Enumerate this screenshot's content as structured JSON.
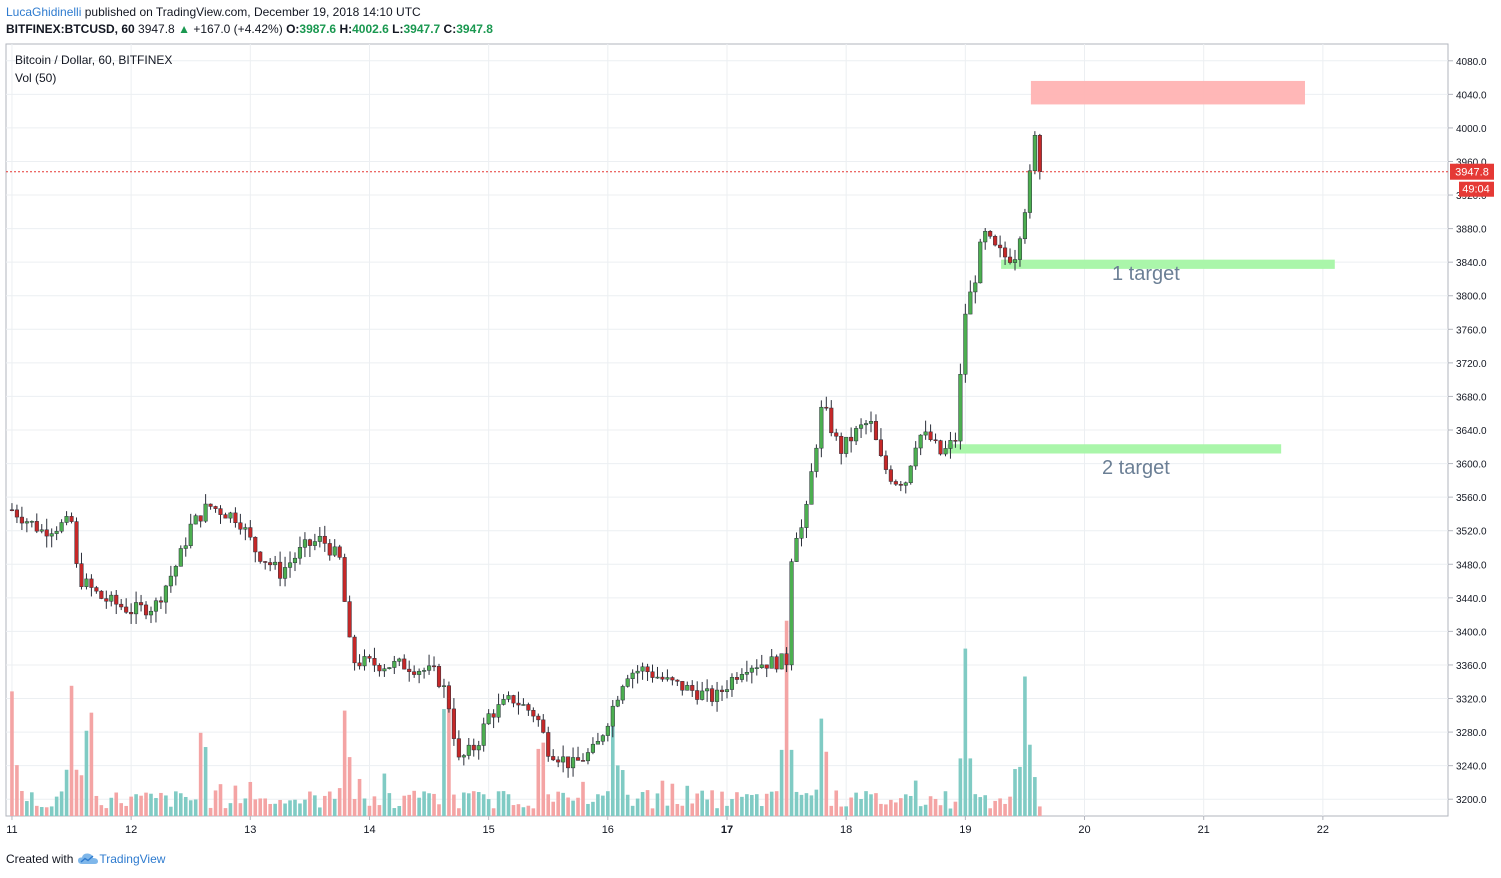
{
  "header": {
    "author": "LucaGhidinelli",
    "published": "published on TradingView.com, December 19, 2018 14:10 UTC",
    "symbol": "BITFINEX:BTCUSD, 60",
    "last": "3947.8",
    "change": "+167.0 (+4.42%)",
    "o_label": "O:",
    "o_value": "3987.6",
    "h_label": "H:",
    "h_value": "4002.6",
    "l_label": "L:",
    "l_value": "3947.7",
    "c_label": "C:",
    "c_value": "3947.8"
  },
  "legend": {
    "title": "Bitcoin / Dollar, 60, BITFINEX",
    "volume": "Vol (50)"
  },
  "price_tag": "3947.8",
  "countdown_tag": "49:04",
  "footer": {
    "created_with": "Created with",
    "brand": "TradingView"
  },
  "colors": {
    "up": "#26a69a",
    "down": "#ef5350",
    "candle_up_body": "#4caf50",
    "candle_down_body": "#c62828",
    "wick": "#2a2e39",
    "grid": "#eceff2",
    "target_zone": "#a5f5a5",
    "resistance_zone": "#ffb3b3",
    "last_price": "#e53935"
  },
  "chart_data": {
    "type": "candlestick",
    "title": "Bitcoin / Dollar, 60, BITFINEX",
    "ylim": [
      3180,
      4100
    ],
    "y_ticks": [
      3200,
      3240,
      3280,
      3320,
      3360,
      3400,
      3440,
      3480,
      3520,
      3560,
      3600,
      3640,
      3680,
      3720,
      3760,
      3800,
      3840,
      3880,
      3920,
      3960,
      4000,
      4040,
      4080
    ],
    "x_ticks": [
      "11",
      "12",
      "13",
      "14",
      "15",
      "16",
      "17",
      "18",
      "19",
      "20",
      "21",
      "22"
    ],
    "x_tick_days": [
      11,
      12,
      13,
      14,
      15,
      16,
      17,
      18,
      19,
      20,
      21,
      22
    ],
    "x_range_days": [
      10.95,
      23.05
    ],
    "last_price": 3947.8,
    "close_path": [
      [
        11.0,
        3545
      ],
      [
        11.25,
        3520
      ],
      [
        11.5,
        3530
      ],
      [
        11.55,
        3465
      ],
      [
        11.75,
        3440
      ],
      [
        12.0,
        3425
      ],
      [
        12.2,
        3430
      ],
      [
        12.4,
        3485
      ],
      [
        12.5,
        3525
      ],
      [
        12.65,
        3550
      ],
      [
        12.9,
        3535
      ],
      [
        13.05,
        3495
      ],
      [
        13.25,
        3470
      ],
      [
        13.45,
        3500
      ],
      [
        13.6,
        3510
      ],
      [
        13.75,
        3485
      ],
      [
        13.85,
        3365
      ],
      [
        14.1,
        3360
      ],
      [
        14.3,
        3360
      ],
      [
        14.55,
        3350
      ],
      [
        14.65,
        3325
      ],
      [
        14.75,
        3245
      ],
      [
        14.9,
        3265
      ],
      [
        15.0,
        3300
      ],
      [
        15.2,
        3320
      ],
      [
        15.4,
        3300
      ],
      [
        15.5,
        3260
      ],
      [
        15.7,
        3240
      ],
      [
        15.9,
        3260
      ],
      [
        16.0,
        3295
      ],
      [
        16.15,
        3350
      ],
      [
        16.3,
        3355
      ],
      [
        16.5,
        3340
      ],
      [
        16.7,
        3330
      ],
      [
        16.9,
        3320
      ],
      [
        17.05,
        3345
      ],
      [
        17.15,
        3360
      ],
      [
        17.5,
        3365
      ],
      [
        17.55,
        3515
      ],
      [
        17.65,
        3525
      ],
      [
        17.7,
        3580
      ],
      [
        17.8,
        3670
      ],
      [
        17.95,
        3615
      ],
      [
        18.1,
        3640
      ],
      [
        18.2,
        3650
      ],
      [
        18.3,
        3600
      ],
      [
        18.4,
        3580
      ],
      [
        18.5,
        3580
      ],
      [
        18.6,
        3635
      ],
      [
        18.7,
        3630
      ],
      [
        18.8,
        3610
      ],
      [
        18.92,
        3630
      ],
      [
        19.0,
        3780
      ],
      [
        19.08,
        3820
      ],
      [
        19.15,
        3875
      ],
      [
        19.25,
        3855
      ],
      [
        19.35,
        3845
      ],
      [
        19.42,
        3850
      ],
      [
        19.47,
        3885
      ],
      [
        19.52,
        3920
      ],
      [
        19.55,
        3950
      ],
      [
        19.58,
        3990
      ],
      [
        19.62,
        3947.8
      ]
    ],
    "volume_peaks": [
      [
        11.0,
        0.62
      ],
      [
        11.5,
        0.65
      ],
      [
        11.65,
        0.7
      ],
      [
        12.6,
        0.55
      ],
      [
        13.8,
        0.6
      ],
      [
        14.65,
        0.9
      ],
      [
        15.45,
        0.4
      ],
      [
        16.05,
        0.5
      ],
      [
        17.5,
        1.0
      ],
      [
        17.8,
        0.55
      ],
      [
        19.0,
        0.85
      ],
      [
        19.5,
        0.7
      ]
    ],
    "zones": [
      {
        "name": "resistance",
        "label": "",
        "y_from": 4028,
        "y_to": 4056,
        "x_from": 19.55,
        "x_to": 21.85
      },
      {
        "name": "target-1",
        "label": "1 target",
        "y_from": 3832,
        "y_to": 3843,
        "x_from": 19.3,
        "x_to": 22.1
      },
      {
        "name": "target-2",
        "label": "2 target",
        "y_from": 3612,
        "y_to": 3623,
        "x_from": 18.85,
        "x_to": 21.65
      }
    ]
  }
}
